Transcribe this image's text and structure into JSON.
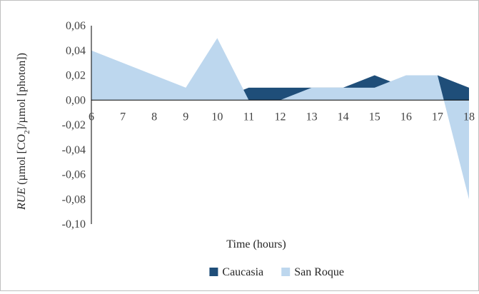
{
  "chart_data": {
    "type": "area",
    "title": "",
    "xlabel": "Time (hours)",
    "ylabel_parts": {
      "italic": "RUE",
      "pre": " (µmol [CO",
      "sub": "2",
      "post": "]/µmol [photon])"
    },
    "x": [
      6,
      7,
      8,
      9,
      10,
      11,
      12,
      13,
      14,
      15,
      16,
      17,
      18
    ],
    "xlim": [
      6,
      18
    ],
    "ylim": [
      -0.1,
      0.06
    ],
    "yticks": [
      0.06,
      0.04,
      0.02,
      0.0,
      -0.02,
      -0.04,
      -0.06,
      -0.08,
      -0.1
    ],
    "ytick_labels": [
      "0,06",
      "0,04",
      "0,02",
      "0,00",
      "-0,02",
      "-0,04",
      "-0,06",
      "-0,08",
      "-0,10"
    ],
    "xtick_labels": [
      "6",
      "7",
      "8",
      "9",
      "10",
      "11",
      "12",
      "13",
      "14",
      "15",
      "16",
      "17",
      "18"
    ],
    "series": [
      {
        "name": "Caucasia",
        "color": "#1f4e79",
        "values": [
          0,
          0,
          0,
          0,
          0,
          0.01,
          0.01,
          0.01,
          0.01,
          0.02,
          0.01,
          0.02,
          0.01
        ]
      },
      {
        "name": "San Roque",
        "color": "#bdd7ee",
        "values": [
          0.04,
          0.03,
          0.02,
          0.01,
          0.05,
          0,
          0,
          0.01,
          0.01,
          0.01,
          0.02,
          0.02,
          -0.08
        ]
      }
    ],
    "grid": false,
    "legend": "bottom"
  }
}
